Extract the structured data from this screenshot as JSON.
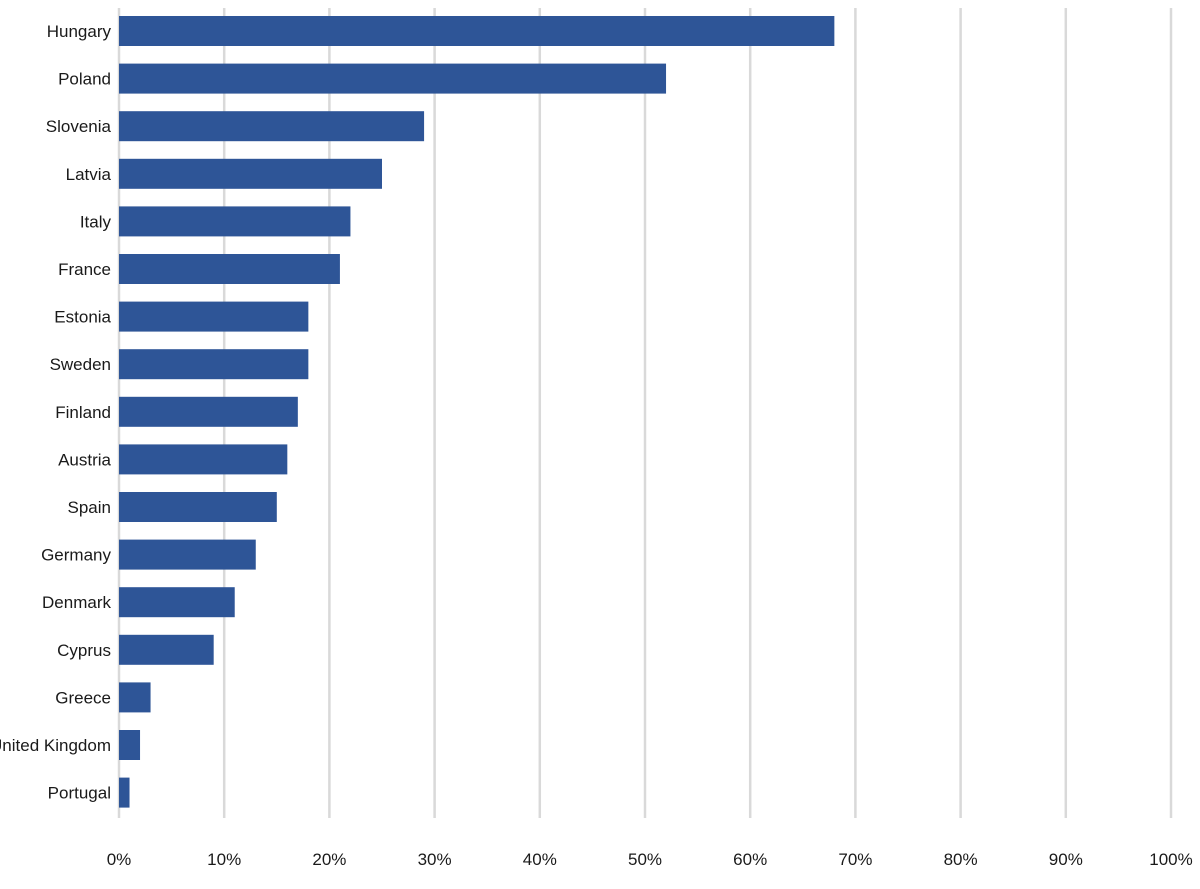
{
  "chart_data": {
    "type": "bar",
    "orientation": "horizontal",
    "title": "",
    "xlabel": "",
    "ylabel": "",
    "categories": [
      "Hungary",
      "Poland",
      "Slovenia",
      "Latvia",
      "Italy",
      "France",
      "Estonia",
      "Sweden",
      "Finland",
      "Austria",
      "Spain",
      "Germany",
      "Denmark",
      "Cyprus",
      "Greece",
      "United Kingdom",
      "Portugal"
    ],
    "values": [
      68,
      52,
      29,
      25,
      22,
      21,
      18,
      18,
      17,
      16,
      15,
      13,
      11,
      9,
      3,
      2,
      1
    ],
    "value_unit": "%",
    "xlim": [
      0,
      100
    ],
    "x_ticks": [
      0,
      10,
      20,
      30,
      40,
      50,
      60,
      70,
      80,
      90,
      100
    ],
    "x_tick_labels": [
      "0%",
      "10%",
      "20%",
      "30%",
      "40%",
      "50%",
      "60%",
      "70%",
      "80%",
      "90%",
      "100%"
    ],
    "grid": "vertical",
    "legend": "none",
    "bar_color": "#2e5597",
    "grid_color": "#d9d9d9"
  }
}
